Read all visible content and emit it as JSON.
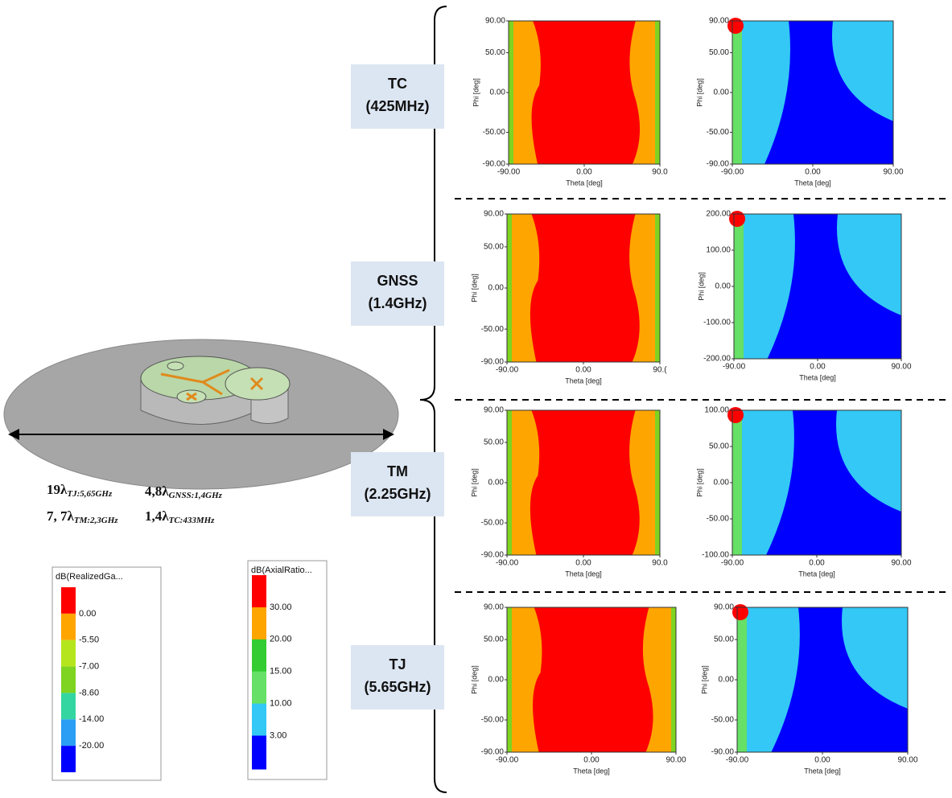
{
  "antenna": {
    "labels": [
      {
        "coef": "19",
        "symbol": "λ",
        "sub": "TJ:5,65GHz"
      },
      {
        "coef": "4,8",
        "symbol": "λ",
        "sub": "GNSS:1,4GHz"
      },
      {
        "coef": "7, 7",
        "symbol": "λ",
        "sub": "TM:2,3GHz"
      },
      {
        "coef": "1,4",
        "symbol": "λ",
        "sub": "TC:433MHz"
      }
    ]
  },
  "legends": [
    {
      "title": "dB(RealizedGa...",
      "levels": [
        "0.00",
        "-5.50",
        "-7.00",
        "-8.60",
        "-14.00",
        "-20.00"
      ]
    },
    {
      "title": "dB(AxialRatio...",
      "levels": [
        "30.00",
        "20.00",
        "15.00",
        "10.00",
        "3.00"
      ]
    }
  ],
  "bands": [
    {
      "name": "TC",
      "freq": "(425MHz)",
      "plots": [
        {
          "xticks": [
            "-90.00",
            "0.00",
            "90.0"
          ],
          "yticks": [
            "90.00",
            "50.00",
            "0.00",
            "-50.00",
            "-90.00"
          ],
          "xlabel": "Theta [deg]",
          "ylabel": "Phi [deg]"
        },
        {
          "xticks": [
            "-90.00",
            "0.00",
            "90.00"
          ],
          "yticks": [
            "90.00",
            "50.00",
            "0.00",
            "-50.00",
            "-90.00"
          ],
          "xlabel": "Theta [deg]",
          "ylabel": "Phi [deg]"
        }
      ]
    },
    {
      "name": "GNSS",
      "freq": "(1.4GHz)",
      "plots": [
        {
          "xticks": [
            "-90.00",
            "0.00",
            "90.("
          ],
          "yticks": [
            "90.00",
            "50.00",
            "0.00",
            "-50.00",
            "-90.00"
          ],
          "xlabel": "Theta [deg]",
          "ylabel": "Phi [deg]"
        },
        {
          "xticks": [
            "-90.00",
            "0.00",
            "90.00"
          ],
          "yticks": [
            "200.00",
            "100.00",
            "0.00",
            "-100.00",
            "-200.00"
          ],
          "xlabel": "Theta [deg]",
          "ylabel": "Phi [deg]"
        }
      ]
    },
    {
      "name": "TM",
      "freq": "(2.25GHz)",
      "plots": [
        {
          "xticks": [
            "-90.00",
            "0.00",
            "90.0"
          ],
          "yticks": [
            "90.00",
            "50.00",
            "0.00",
            "-50.00",
            "-90.00"
          ],
          "xlabel": "Theta [deg]",
          "ylabel": "Phi [deg]"
        },
        {
          "xticks": [
            "-90.00",
            "0.00",
            "90.00"
          ],
          "yticks": [
            "100.00",
            "50.00",
            "0.00",
            "-50.00",
            "-100.00"
          ],
          "xlabel": "Theta [deg]",
          "ylabel": "Phi [deg]"
        }
      ]
    },
    {
      "name": "TJ",
      "freq": "(5.65GHz)",
      "plots": [
        {
          "xticks": [
            "-90.00",
            "0.00",
            "90.00"
          ],
          "yticks": [
            "90.00",
            "50.00",
            "0.00",
            "-50.00",
            "-90.00"
          ],
          "xlabel": "Theta [deg]",
          "ylabel": "Phi [deg]"
        },
        {
          "xticks": [
            "-90.00",
            "0.00",
            "90.00"
          ],
          "yticks": [
            "90.00",
            "50.00",
            "0.00",
            "-50.00",
            "-90.00"
          ],
          "xlabel": "Theta [deg]",
          "ylabel": "Phi [deg]"
        }
      ]
    }
  ]
}
